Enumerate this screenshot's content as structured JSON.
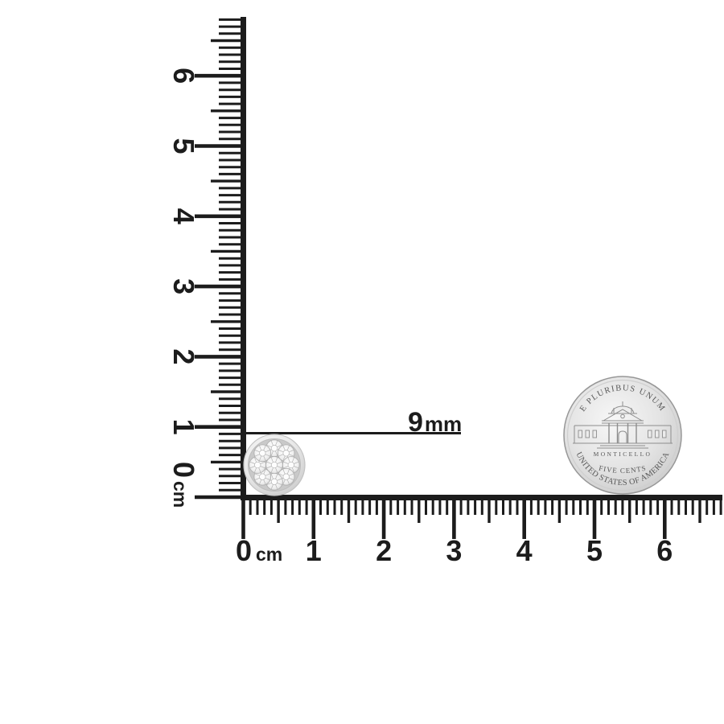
{
  "callout": {
    "value": "9",
    "unit": "mm"
  },
  "rulers": {
    "unit_label": "cm",
    "vertical_major_labels": [
      "0",
      "1",
      "2",
      "3",
      "4",
      "5",
      "6"
    ],
    "horizontal_major_labels": [
      "0",
      "1",
      "2",
      "3",
      "4",
      "5",
      "6"
    ],
    "ticks_per_cm": 10
  },
  "earring": {
    "type": "round diamond cluster stud",
    "visible_stones": 9
  },
  "coin": {
    "top_legend": "E PLURIBUS UNUM",
    "building_label": "MONTICELLO",
    "denomination": "FIVE CENTS",
    "bottom_legend": "UNITED STATES OF AMERICA"
  },
  "colors": {
    "ink": "#1c1c1c",
    "background": "#ffffff",
    "coin_rim": "#979797",
    "coin_face_light": "#f6f6f6",
    "coin_face_dark": "#c0c0c0",
    "coin_engraving": "#575757",
    "bezel_light": "#f7f7f7",
    "bezel_dark": "#c8c8c8",
    "diamond_facet": "#b3b3b3"
  }
}
